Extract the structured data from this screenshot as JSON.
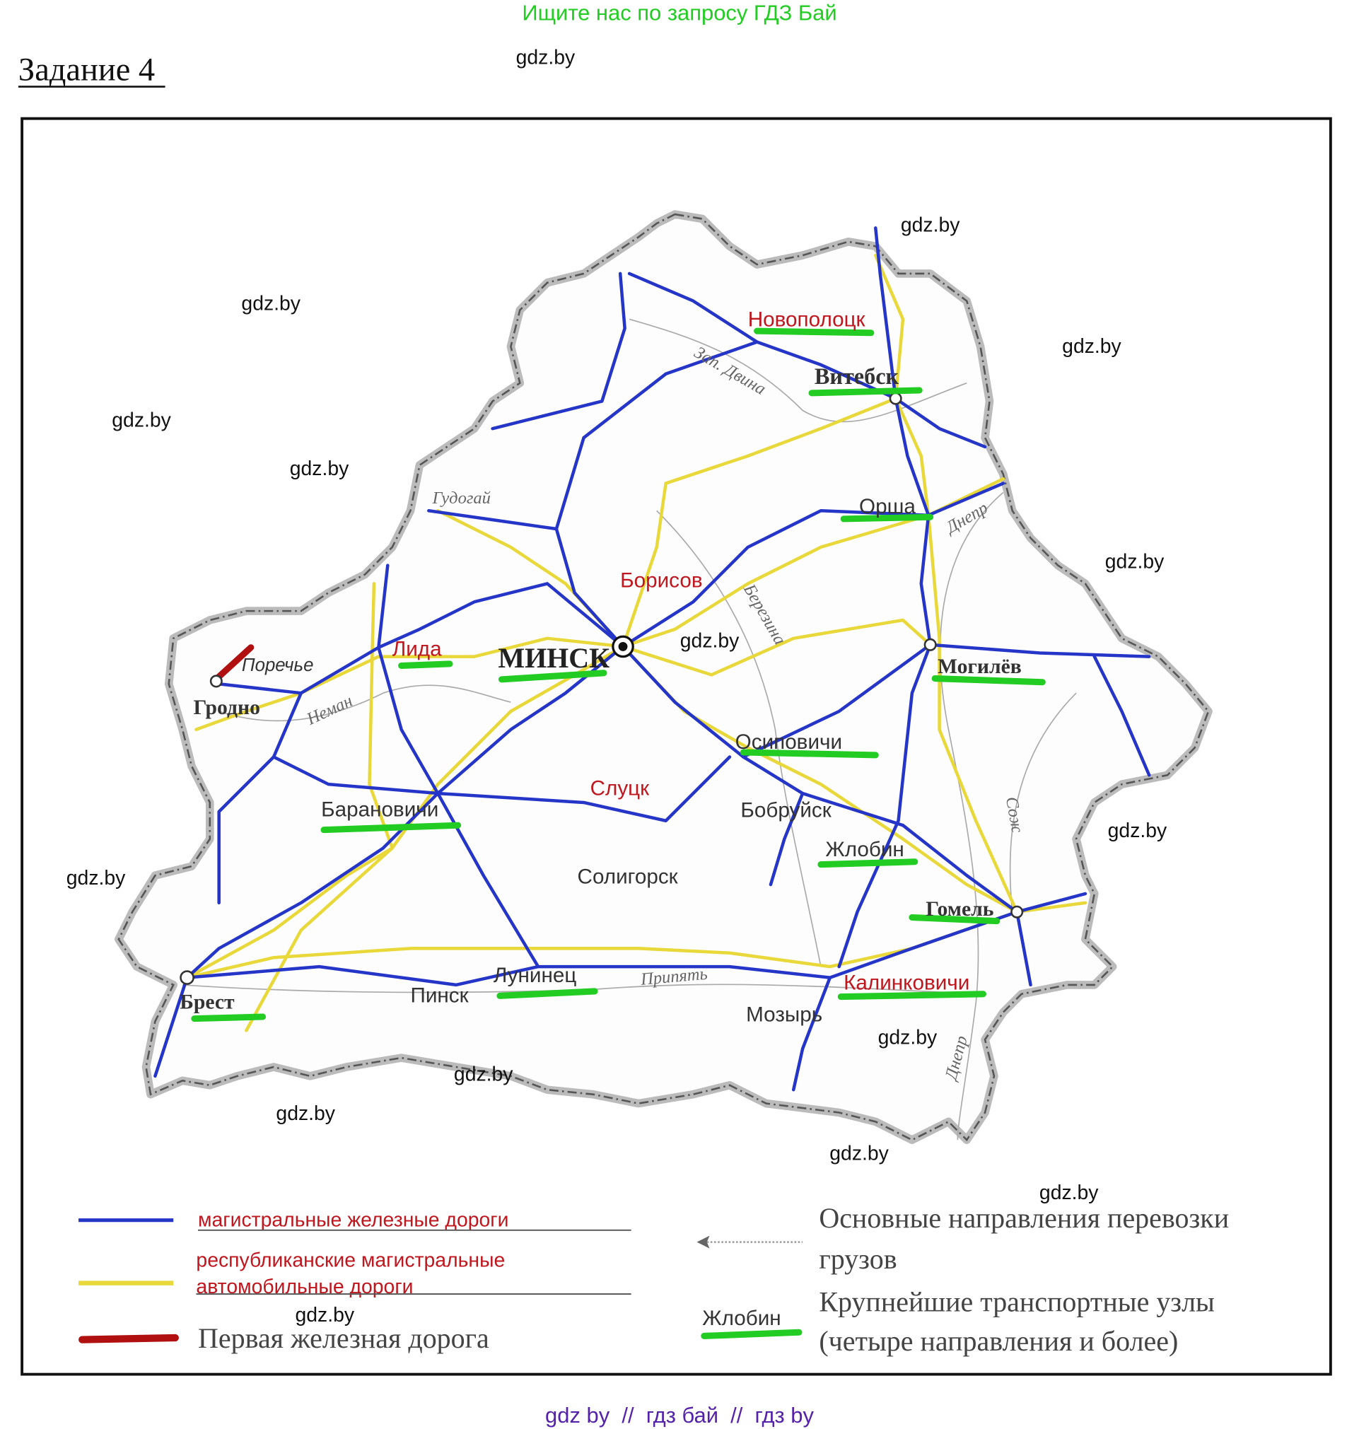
{
  "header": {
    "promo": "Ищите нас по запросу ГДЗ Бай",
    "task_title": "Задание 4"
  },
  "colors": {
    "promo": "#22cc22",
    "railway": "#2535c8",
    "road": "#e8d83a",
    "first_railway": "#b01010",
    "hub_marker": "#22cc22",
    "legend_text_red": "#c0161e",
    "footer": "#5522aa"
  },
  "watermark": "gdz.by",
  "map": {
    "cities": {
      "novopolotsk": "Новополоцк",
      "vitebsk": "Витебск",
      "orsha": "Орша",
      "borisov": "Борисов",
      "lida": "Лида",
      "porechye": "Поречье",
      "grodno": "Гродно",
      "minsk": "МИНСК",
      "mogilev": "Могилёв",
      "osipovichi": "Осиповичи",
      "slutsk": "Слуцк",
      "bobruisk": "Бобруйск",
      "baranovichi": "Барановичи",
      "zhlobin": "Жлобин",
      "soligorsk": "Солигорск",
      "gomel": "Гомель",
      "kalinkovichi": "Калинковичи",
      "luninets": "Лунинец",
      "pinsk": "Пинск",
      "brest": "Брест",
      "mozyr": "Мозырь"
    },
    "rivers": {
      "zap_dvina": "Зап. Двина",
      "gudogai": "Гудогай",
      "dnepr_north": "Днепр",
      "berezina": "Березина",
      "neman": "Неман",
      "sozh": "Сож",
      "pripyat": "Припять",
      "dnepr_south": "Днепр"
    }
  },
  "legend": {
    "railways": "магистральные железные дороги",
    "roads_line1": "республиканские магистральные",
    "roads_line2": "автомобильные дороги",
    "first_railway": "Первая железная дорога",
    "cargo_line1": "Основные направления перевозки",
    "cargo_line2": "грузов",
    "hub_example": "Жлобин",
    "hubs_line1": "Крупнейшие транспортные узлы",
    "hubs_line2": "(четыре направления и более)"
  },
  "footer": "gdz by  //  гдз бай  //  гдз by"
}
